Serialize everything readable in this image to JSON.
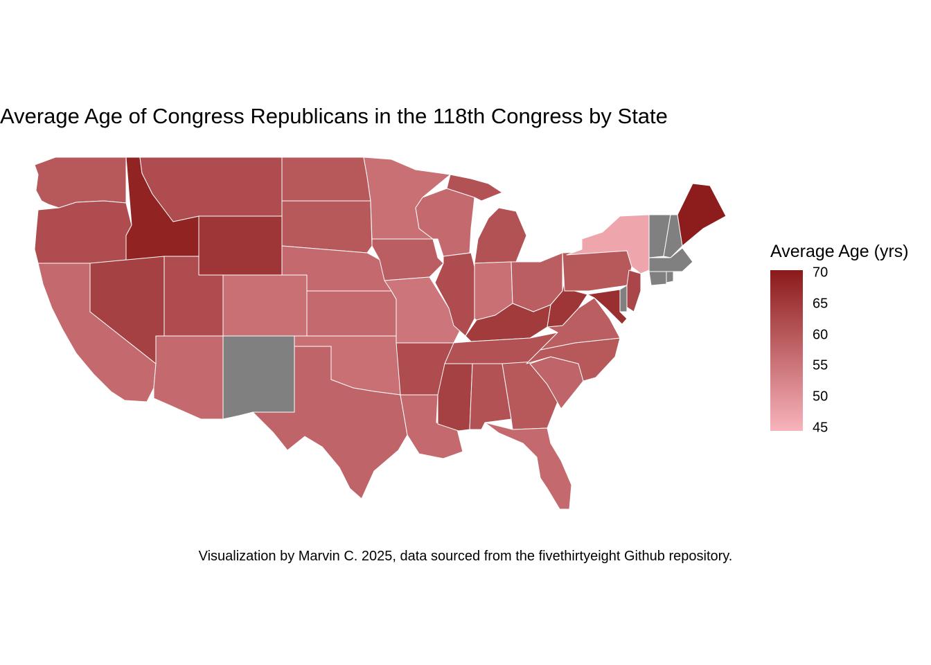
{
  "title": "Average Age of Congress Republicans in the 118th Congress by State",
  "caption": "Visualization by Marvin C. 2025, data sourced from the fivethirtyeight Github repository.",
  "legend": {
    "title": "Average Age (yrs)",
    "ticks": [
      "70",
      "65",
      "60",
      "55",
      "50",
      "45"
    ],
    "tick_values": [
      70,
      65,
      60,
      55,
      50,
      45
    ],
    "min": 44.5,
    "max": 70.5,
    "color_low": "#f8b4bc",
    "color_high": "#8b1a1a",
    "missing_color": "#808080"
  },
  "states": [
    {
      "abbr": "WA",
      "age": 60
    },
    {
      "abbr": "OR",
      "age": 62
    },
    {
      "abbr": "CA",
      "age": 57
    },
    {
      "abbr": "ID",
      "age": 69
    },
    {
      "abbr": "NV",
      "age": 64
    },
    {
      "abbr": "MT",
      "age": 62
    },
    {
      "abbr": "WY",
      "age": 66
    },
    {
      "abbr": "UT",
      "age": 62
    },
    {
      "abbr": "AZ",
      "age": 57
    },
    {
      "abbr": "CO",
      "age": 56
    },
    {
      "abbr": "NM",
      "age": null
    },
    {
      "abbr": "ND",
      "age": 60
    },
    {
      "abbr": "SD",
      "age": 60
    },
    {
      "abbr": "NE",
      "age": 57
    },
    {
      "abbr": "KS",
      "age": 57
    },
    {
      "abbr": "OK",
      "age": 56
    },
    {
      "abbr": "TX",
      "age": 58
    },
    {
      "abbr": "MN",
      "age": 56
    },
    {
      "abbr": "IA",
      "age": 59
    },
    {
      "abbr": "MO",
      "age": 55
    },
    {
      "abbr": "AR",
      "age": 62
    },
    {
      "abbr": "LA",
      "age": 57
    },
    {
      "abbr": "WI",
      "age": 57
    },
    {
      "abbr": "IL",
      "age": 62
    },
    {
      "abbr": "MI",
      "age": 61
    },
    {
      "abbr": "IN",
      "age": 56
    },
    {
      "abbr": "OH",
      "age": 59
    },
    {
      "abbr": "KY",
      "age": 65
    },
    {
      "abbr": "TN",
      "age": 61
    },
    {
      "abbr": "MS",
      "age": 64
    },
    {
      "abbr": "AL",
      "age": 61
    },
    {
      "abbr": "GA",
      "age": 60
    },
    {
      "abbr": "FL",
      "age": 57
    },
    {
      "abbr": "SC",
      "age": 58
    },
    {
      "abbr": "NC",
      "age": 60
    },
    {
      "abbr": "VA",
      "age": 59
    },
    {
      "abbr": "WV",
      "age": 66
    },
    {
      "abbr": "PA",
      "age": 60
    },
    {
      "abbr": "NY",
      "age": 47
    },
    {
      "abbr": "NJ",
      "age": 63
    },
    {
      "abbr": "DE",
      "age": null
    },
    {
      "abbr": "MD",
      "age": 67
    },
    {
      "abbr": "VT",
      "age": null
    },
    {
      "abbr": "NH",
      "age": null
    },
    {
      "abbr": "ME",
      "age": 70
    },
    {
      "abbr": "MA",
      "age": null
    },
    {
      "abbr": "CT",
      "age": null
    },
    {
      "abbr": "RI",
      "age": null
    }
  ]
}
